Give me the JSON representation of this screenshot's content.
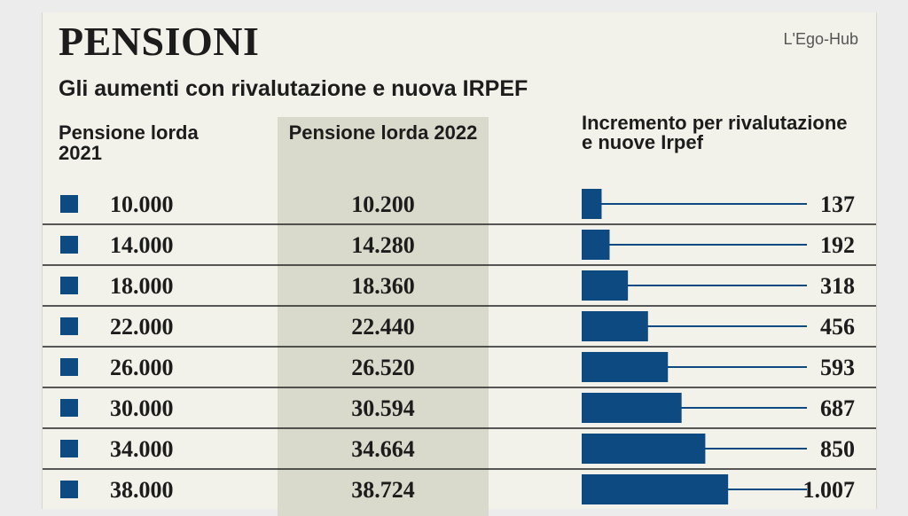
{
  "header": {
    "title": "PENSIONI",
    "subtitle": "Gli aumenti con rivalutazione e nuova IRPEF",
    "source": "L'Ego-Hub"
  },
  "columns": {
    "col1": "Pensione lorda 2021",
    "col2": "Pensione lorda 2022",
    "col3": "Incremento per rivalutazione e nuove Irpef"
  },
  "colors": {
    "accent": "#0e4a82",
    "text": "#1c1c1c",
    "shade": "#dadacc",
    "background": "#f2f2ea"
  },
  "chart_data": {
    "type": "bar",
    "title": "PENSIONI",
    "subtitle": "Gli aumenti con rivalutazione e nuova IRPEF",
    "categories": [
      "10.000",
      "14.000",
      "18.000",
      "22.000",
      "26.000",
      "30.000",
      "34.000",
      "38.000"
    ],
    "pensione_2021": [
      10000,
      14000,
      18000,
      22000,
      26000,
      30000,
      34000,
      38000
    ],
    "pensione_2021_labels": [
      "10.000",
      "14.000",
      "18.000",
      "22.000",
      "26.000",
      "30.000",
      "34.000",
      "38.000"
    ],
    "pensione_2022": [
      10200,
      14280,
      18360,
      22440,
      26520,
      30594,
      34664,
      38724
    ],
    "pensione_2022_labels": [
      "10.200",
      "14.280",
      "18.360",
      "22.440",
      "26.520",
      "30.594",
      "34.664",
      "38.724"
    ],
    "values": [
      137,
      192,
      318,
      456,
      593,
      687,
      850,
      1007
    ],
    "value_labels": [
      "137",
      "192",
      "318",
      "456",
      "593",
      "687",
      "850",
      "1.007"
    ],
    "xlabel": "",
    "ylabel": ""
  }
}
